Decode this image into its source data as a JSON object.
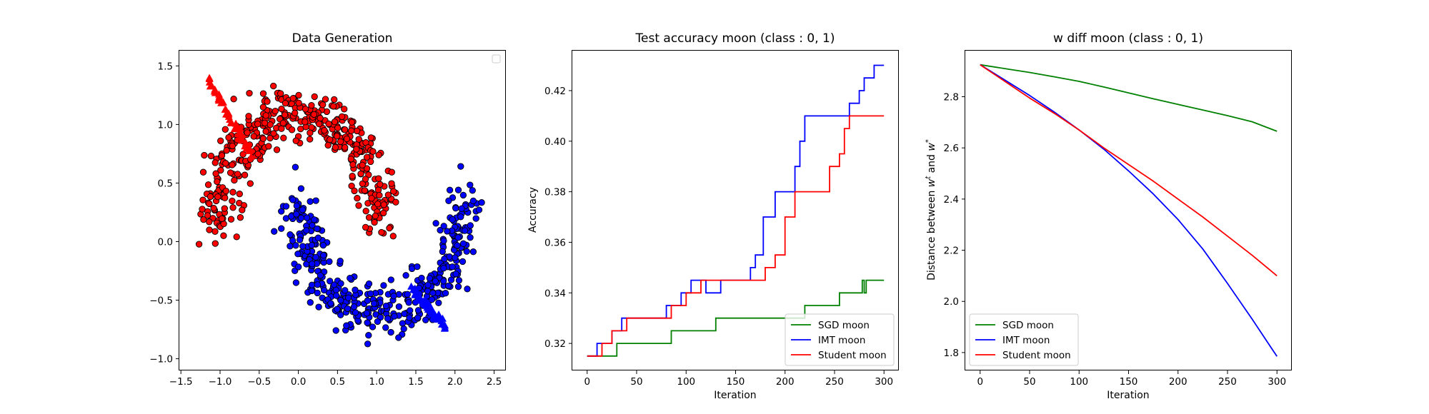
{
  "chart_data": [
    {
      "type": "scatter",
      "title": "Data Generation",
      "xlabel": "",
      "ylabel": "",
      "xlim": [
        -1.52,
        2.65
      ],
      "ylim": [
        -1.1,
        1.63
      ],
      "xticks": [
        -1.5,
        -1.0,
        -0.5,
        0.0,
        0.5,
        1.0,
        1.5,
        2.0,
        2.5
      ],
      "xtick_labels": [
        "−1.5",
        "−1.0",
        "−0.5",
        "0.0",
        "0.5",
        "1.0",
        "1.5",
        "2.0",
        "2.5"
      ],
      "yticks": [
        -1.0,
        -0.5,
        0.0,
        0.5,
        1.0,
        1.5
      ],
      "ytick_labels": [
        "−1.0",
        "−0.5",
        "0.0",
        "0.5",
        "1.0",
        "1.5"
      ],
      "legend": "top-right (empty)",
      "grid": false,
      "classes": [
        {
          "class": 0,
          "color": "#ff0000",
          "marker": "circle",
          "shape": "upper moon",
          "x_range": [
            -1.35,
            1.2
          ],
          "y_range": [
            -0.35,
            1.55
          ]
        },
        {
          "class": 1,
          "color": "#0000ff",
          "marker": "circle",
          "shape": "lower moon",
          "x_range": [
            -0.3,
            2.45
          ],
          "y_range": [
            -1.0,
            0.8
          ]
        }
      ],
      "trajectories": [
        {
          "color": "#ff0000",
          "marker": "triangle",
          "from": [
            -1.15,
            1.38
          ],
          "to": [
            -0.6,
            0.75
          ]
        },
        {
          "color": "#0000ff",
          "marker": "triangle",
          "from": [
            1.45,
            -0.4
          ],
          "to": [
            1.88,
            -0.73
          ]
        }
      ]
    },
    {
      "type": "line",
      "title": "Test accuracy moon (class : 0, 1)",
      "xlabel": "Iteration",
      "ylabel": "Accuracy",
      "xlim": [
        -15,
        315
      ],
      "ylim": [
        0.3093,
        0.4358
      ],
      "xticks": [
        0,
        50,
        100,
        150,
        200,
        250,
        300
      ],
      "xtick_labels": [
        "0",
        "50",
        "100",
        "150",
        "200",
        "250",
        "300"
      ],
      "yticks": [
        0.32,
        0.34,
        0.36,
        0.38,
        0.4,
        0.42
      ],
      "ytick_labels": [
        "0.32",
        "0.34",
        "0.36",
        "0.38",
        "0.40",
        "0.42"
      ],
      "legend": "lower-right",
      "grid": false,
      "series": [
        {
          "name": "SGD moon",
          "color": "#008000",
          "step": true,
          "x": [
            0,
            30,
            40,
            85,
            130,
            220,
            255,
            278,
            280,
            282,
            285,
            300
          ],
          "y": [
            0.315,
            0.32,
            0.32,
            0.325,
            0.33,
            0.335,
            0.34,
            0.345,
            0.34,
            0.345,
            0.345,
            0.345
          ]
        },
        {
          "name": "IMT moon",
          "color": "#0000ff",
          "step": true,
          "x": [
            0,
            10,
            25,
            35,
            50,
            80,
            95,
            105,
            120,
            135,
            165,
            170,
            178,
            190,
            205,
            210,
            215,
            220,
            230,
            250,
            265,
            275,
            280,
            285,
            290,
            300
          ],
          "y": [
            0.315,
            0.32,
            0.325,
            0.33,
            0.33,
            0.335,
            0.34,
            0.345,
            0.34,
            0.345,
            0.35,
            0.355,
            0.37,
            0.38,
            0.38,
            0.39,
            0.4,
            0.41,
            0.41,
            0.41,
            0.415,
            0.42,
            0.425,
            0.425,
            0.43,
            0.43
          ]
        },
        {
          "name": "Student moon",
          "color": "#ff0000",
          "step": true,
          "x": [
            0,
            15,
            25,
            40,
            85,
            100,
            115,
            120,
            140,
            180,
            190,
            200,
            210,
            245,
            255,
            260,
            265,
            270,
            300
          ],
          "y": [
            0.315,
            0.32,
            0.325,
            0.33,
            0.335,
            0.34,
            0.345,
            0.345,
            0.345,
            0.35,
            0.355,
            0.37,
            0.38,
            0.39,
            0.395,
            0.405,
            0.41,
            0.41,
            0.41
          ]
        }
      ]
    },
    {
      "type": "line",
      "title": "w diff moon (class : 0, 1)",
      "xlabel": "Iteration",
      "ylabel_prefix": "Distance between ",
      "ylabel_w1": "w",
      "ylabel_sup1": "t",
      "ylabel_mid": " and ",
      "ylabel_w2": "w",
      "ylabel_sup2": "*",
      "xlim": [
        -15,
        315
      ],
      "ylim": [
        1.73,
        2.98
      ],
      "xticks": [
        0,
        50,
        100,
        150,
        200,
        250,
        300
      ],
      "xtick_labels": [
        "0",
        "50",
        "100",
        "150",
        "200",
        "250",
        "300"
      ],
      "yticks": [
        1.8,
        2.0,
        2.2,
        2.4,
        2.6,
        2.8
      ],
      "ytick_labels": [
        "1.8",
        "2.0",
        "2.2",
        "2.4",
        "2.6",
        "2.8"
      ],
      "legend": "lower-left",
      "grid": false,
      "series": [
        {
          "name": "SGD moon",
          "color": "#008000",
          "x": [
            0,
            25,
            50,
            75,
            100,
            125,
            150,
            175,
            200,
            225,
            250,
            275,
            300
          ],
          "y": [
            2.925,
            2.91,
            2.895,
            2.878,
            2.86,
            2.838,
            2.815,
            2.792,
            2.77,
            2.748,
            2.726,
            2.702,
            2.665
          ]
        },
        {
          "name": "IMT moon",
          "color": "#0000ff",
          "x": [
            0,
            25,
            50,
            75,
            100,
            125,
            150,
            175,
            200,
            225,
            250,
            275,
            300
          ],
          "y": [
            2.925,
            2.865,
            2.805,
            2.74,
            2.67,
            2.595,
            2.51,
            2.42,
            2.32,
            2.205,
            2.07,
            1.93,
            1.785
          ]
        },
        {
          "name": "Student moon",
          "color": "#ff0000",
          "x": [
            0,
            25,
            50,
            75,
            100,
            125,
            150,
            175,
            200,
            225,
            250,
            275,
            300
          ],
          "y": [
            2.925,
            2.86,
            2.795,
            2.735,
            2.67,
            2.6,
            2.535,
            2.47,
            2.4,
            2.33,
            2.255,
            2.18,
            2.1
          ]
        }
      ]
    }
  ]
}
